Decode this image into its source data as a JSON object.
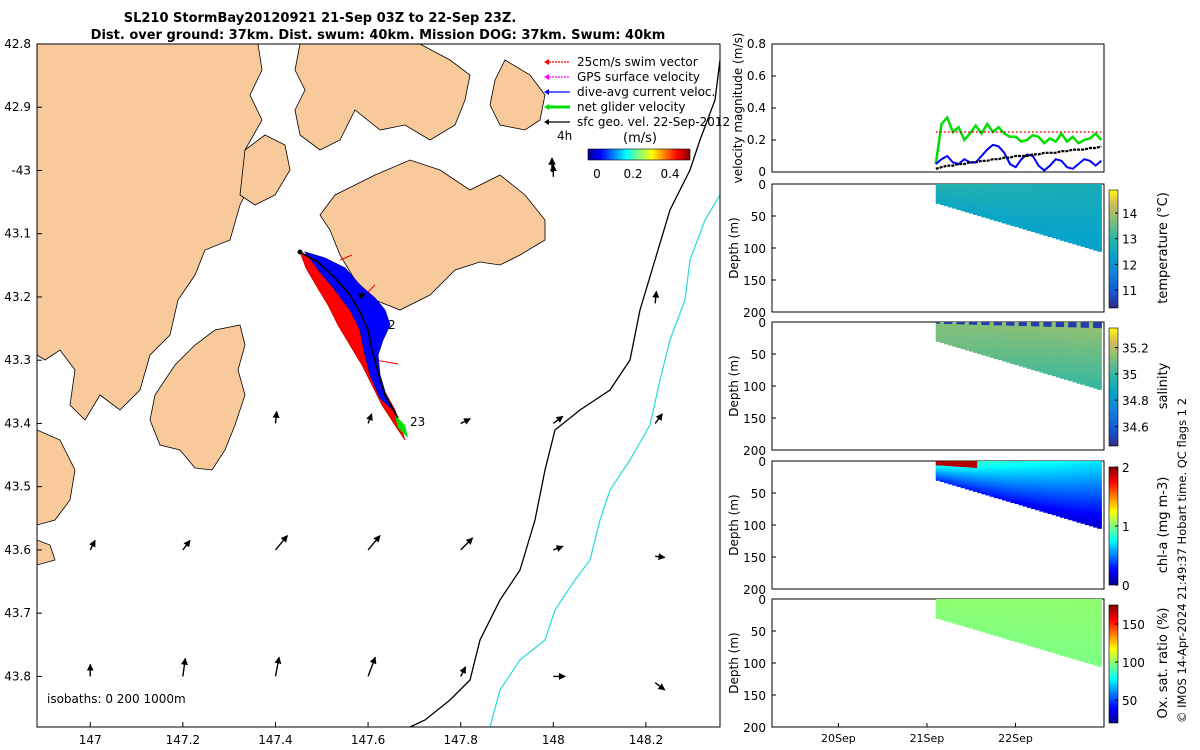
{
  "figure": {
    "title_line1": "SL210 StormBay20120921 21-Sep 03Z to 22-Sep 23Z.",
    "title_line2": "Dist. over ground: 37km. Dist. swum: 40km. Mission DOG: 37km. Swum: 40km",
    "side_note": "© IMOS 14-Apr-2024 21:49:37 Hobart time. QC flags 1  2",
    "isobaths_label": "isobaths: 0   200  1000m"
  },
  "map": {
    "lat_ticks": [
      "42.8",
      "42.9",
      "-43",
      "43.1",
      "43.2",
      "43.3",
      "43.4",
      "43.5",
      "43.6",
      "43.7",
      "43.8"
    ],
    "lon_ticks": [
      "147",
      "147.2",
      "147.4",
      "147.6",
      "147.8",
      "148",
      "148.2"
    ],
    "lat_range": [
      42.8,
      43.88
    ],
    "lon_range": [
      146.885,
      148.36
    ],
    "legend": [
      {
        "label": "25cm/s swim vector",
        "color": "#ff0000"
      },
      {
        "label": "GPS surface velocity",
        "color": "#ff00ff"
      },
      {
        "label": "dive-avg current veloc.",
        "color": "#0000ff"
      },
      {
        "label": "net glider velocity",
        "color": "#00dd00"
      },
      {
        "label": "sfc geo. vel. 22-Sep-2012",
        "color": "#000000"
      }
    ],
    "ref_arrow_label": "4h",
    "colorbar_title": "(m/s)",
    "colorbar_ticks": [
      "0",
      "0.2",
      "0.4"
    ],
    "track_labels": [
      "2",
      "23"
    ],
    "land_color": "#f8c99b",
    "isobath_200_color": "#000000",
    "isobath_1000_color": "#33dddd",
    "geo_vectors": [
      {
        "lon": 147.0,
        "lat": 43.8,
        "u": 0.0,
        "v": 0.5
      },
      {
        "lon": 147.2,
        "lat": 43.8,
        "u": 0.1,
        "v": 0.75
      },
      {
        "lon": 147.4,
        "lat": 43.8,
        "u": 0.15,
        "v": 0.8
      },
      {
        "lon": 147.6,
        "lat": 43.8,
        "u": 0.3,
        "v": 0.8
      },
      {
        "lon": 147.8,
        "lat": 43.8,
        "u": 0.2,
        "v": 0.4
      },
      {
        "lon": 148.0,
        "lat": 43.8,
        "u": 0.5,
        "v": 0.0
      },
      {
        "lon": 148.22,
        "lat": 43.81,
        "u": 0.4,
        "v": -0.3
      },
      {
        "lon": 147.0,
        "lat": 43.6,
        "u": 0.2,
        "v": 0.4
      },
      {
        "lon": 147.2,
        "lat": 43.6,
        "u": 0.3,
        "v": 0.4
      },
      {
        "lon": 147.4,
        "lat": 43.6,
        "u": 0.5,
        "v": 0.6
      },
      {
        "lon": 147.6,
        "lat": 43.6,
        "u": 0.5,
        "v": 0.6
      },
      {
        "lon": 147.8,
        "lat": 43.6,
        "u": 0.5,
        "v": 0.5
      },
      {
        "lon": 148.0,
        "lat": 43.6,
        "u": 0.4,
        "v": 0.15
      },
      {
        "lon": 148.22,
        "lat": 43.61,
        "u": 0.4,
        "v": -0.05
      },
      {
        "lon": 147.4,
        "lat": 43.4,
        "u": 0.05,
        "v": 0.5
      },
      {
        "lon": 147.6,
        "lat": 43.4,
        "u": 0.15,
        "v": 0.4
      },
      {
        "lon": 147.8,
        "lat": 43.4,
        "u": 0.4,
        "v": 0.2
      },
      {
        "lon": 148.0,
        "lat": 43.4,
        "u": 0.4,
        "v": 0.3
      },
      {
        "lon": 148.22,
        "lat": 43.4,
        "u": 0.3,
        "v": 0.4
      },
      {
        "lon": 148.22,
        "lat": 43.21,
        "u": 0.05,
        "v": 0.5
      },
      {
        "lon": 148.0,
        "lat": 43.01,
        "u": 0.0,
        "v": 0.5
      },
      {
        "lon": 147.58,
        "lat": 43.2,
        "u": 0.25,
        "v": 0.15
      }
    ]
  },
  "chart_data": [
    {
      "type": "line",
      "panel": "velocity",
      "ylabel": "velocity magnitude (m/s)",
      "ylim": [
        0,
        0.8
      ],
      "yticks": [
        "0",
        "0.2",
        "0.4",
        "0.6",
        "0.8"
      ],
      "x_start_day": 21.1,
      "x_end_day": 22.97,
      "series": [
        {
          "name": "net glider velocity",
          "color": "#00dd00",
          "values": [
            0.05,
            0.3,
            0.34,
            0.25,
            0.28,
            0.2,
            0.24,
            0.29,
            0.24,
            0.3,
            0.25,
            0.28,
            0.24,
            0.22,
            0.22,
            0.19,
            0.2,
            0.23,
            0.22,
            0.18,
            0.21,
            0.19,
            0.24,
            0.19,
            0.22,
            0.18,
            0.2,
            0.21,
            0.24,
            0.2
          ]
        },
        {
          "name": "25cm/s swim vector",
          "color": "#cc0000",
          "dashed": true,
          "values": [
            0.25,
            0.25,
            0.25,
            0.25,
            0.25,
            0.25,
            0.25,
            0.25,
            0.25,
            0.25,
            0.25,
            0.25,
            0.25,
            0.25,
            0.25,
            0.25,
            0.25,
            0.25,
            0.25,
            0.25,
            0.25,
            0.25,
            0.25,
            0.25,
            0.25,
            0.25,
            0.25,
            0.25,
            0.25,
            0.25
          ]
        },
        {
          "name": "dive-avg current veloc.",
          "color": "#0000ff",
          "values": [
            0.05,
            0.08,
            0.1,
            0.06,
            0.05,
            0.08,
            0.06,
            0.06,
            0.1,
            0.14,
            0.17,
            0.16,
            0.12,
            0.05,
            0.03,
            0.08,
            0.11,
            0.1,
            0.04,
            0.01,
            0.04,
            0.08,
            0.07,
            0.03,
            0.02,
            0.05,
            0.08,
            0.07,
            0.04,
            0.07
          ]
        },
        {
          "name": "sfc geo. vel. 22-Sep-2012",
          "color": "#000000",
          "dotted": true,
          "values": [
            0.02,
            0.03,
            0.04,
            0.04,
            0.05,
            0.05,
            0.06,
            0.06,
            0.07,
            0.07,
            0.08,
            0.08,
            0.09,
            0.09,
            0.1,
            0.1,
            0.1,
            0.11,
            0.11,
            0.12,
            0.12,
            0.12,
            0.13,
            0.13,
            0.14,
            0.14,
            0.14,
            0.15,
            0.15,
            0.16
          ]
        }
      ]
    },
    {
      "type": "heatmap",
      "panel": "temperature",
      "ylabel": "Depth (m)",
      "cbar_label": "temperature (°C)",
      "cbar_ticks": [
        "14",
        "13",
        "12",
        "11"
      ],
      "cbar_tick_values": [
        14,
        13,
        12,
        11
      ],
      "cbar_range": [
        10.3,
        14.9
      ],
      "yticks": [
        "0",
        "50",
        "100",
        "150",
        "200"
      ],
      "ylim": [
        0,
        200
      ],
      "x_start_day": 21.1,
      "x_end_day": 22.97,
      "bottom_depth_start": 30,
      "bottom_depth_end": 105,
      "surface_value": 12.9,
      "deep_value": 12.5,
      "surface_value_end": 12.7,
      "deep_value_end": 12.3
    },
    {
      "type": "heatmap",
      "panel": "salinity",
      "ylabel": "Depth (m)",
      "cbar_label": "salinity",
      "cbar_ticks": [
        "35.2",
        "35",
        "34.8",
        "34.6"
      ],
      "cbar_tick_values": [
        35.2,
        35.0,
        34.8,
        34.6
      ],
      "cbar_range": [
        34.45,
        35.35
      ],
      "yticks": [
        "0",
        "50",
        "100",
        "150",
        "200"
      ],
      "ylim": [
        0,
        200
      ],
      "x_start_day": 21.1,
      "x_end_day": 22.97,
      "bottom_depth_start": 30,
      "bottom_depth_end": 105,
      "surface_value": 35.12,
      "deep_value": 35.1,
      "surface_value_end": 35.15,
      "deep_value_end": 35.0,
      "surface_band_value": 34.5
    },
    {
      "type": "heatmap",
      "panel": "chl-a",
      "ylabel": "Depth (m)",
      "cbar_label": "chl-a (mg m-3)",
      "cbar_ticks": [
        "2",
        "1",
        "0"
      ],
      "cbar_tick_values": [
        2,
        1,
        0
      ],
      "cbar_range": [
        0,
        2
      ],
      "yticks": [
        "0",
        "50",
        "100",
        "150",
        "200"
      ],
      "ylim": [
        0,
        200
      ],
      "x_start_day": 21.1,
      "x_end_day": 22.97,
      "bottom_depth_start": 30,
      "bottom_depth_end": 105,
      "surface_value": 1.9,
      "deep_value": 0.5,
      "surface_value_end": 0.8,
      "deep_value_end": 0.3
    },
    {
      "type": "heatmap",
      "panel": "oxygen",
      "ylabel": "Depth (m)",
      "cbar_label": "Ox. sat. ratio (%)",
      "cbar_ticks": [
        "150",
        "100",
        "50"
      ],
      "cbar_tick_values": [
        150,
        100,
        50
      ],
      "cbar_range": [
        20,
        175
      ],
      "yticks": [
        "0",
        "50",
        "100",
        "150",
        "200"
      ],
      "ylim": [
        0,
        200
      ],
      "x_start_day": 21.1,
      "x_end_day": 22.97,
      "bottom_depth_start": 30,
      "bottom_depth_end": 105,
      "surface_value": 100,
      "deep_value": 98,
      "surface_value_end": 100,
      "deep_value_end": 97,
      "xticks": [
        "20Sep",
        "21Sep",
        "22Sep"
      ],
      "xtick_days": [
        20,
        21,
        22
      ]
    }
  ]
}
